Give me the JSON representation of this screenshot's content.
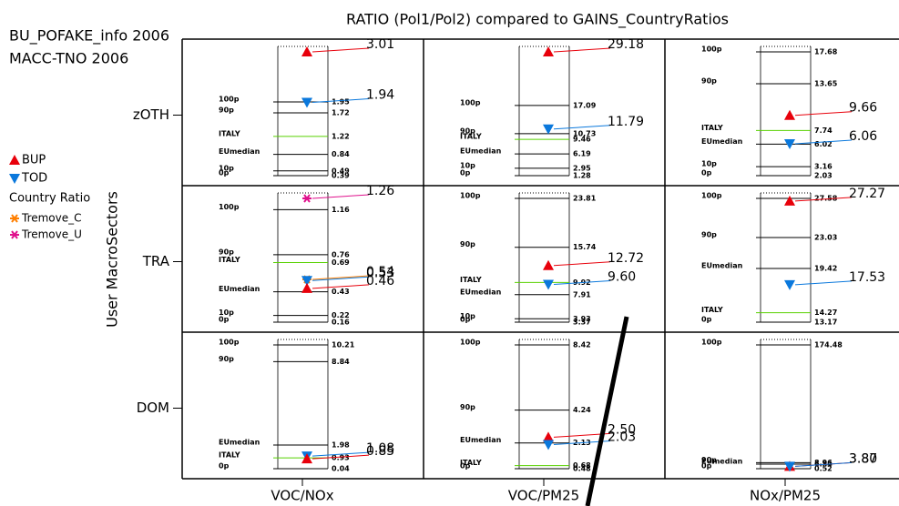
{
  "chart_data": {
    "type": "ratio-panels",
    "title": "RATIO (Pol1/Pol2) compared to GAINS_CountryRatios",
    "notes": [
      "BU_POFAKE_info 2006",
      "MACC-TNO 2006"
    ],
    "y_label": "User MacroSectors",
    "series": [
      {
        "name": "BUP",
        "color": "#e8000b"
      },
      {
        "name": "TOD",
        "color": "#0a78dc"
      },
      {
        "name": "Country Ratio",
        "color": "#58d100"
      },
      {
        "name": "Tremove_C",
        "color": "#ff7f00"
      },
      {
        "name": "Tremove_U",
        "color": "#e0108c"
      }
    ],
    "rows": [
      "zOTH",
      "TRA",
      "DOM"
    ],
    "cols": [
      "VOC/NOx",
      "VOC/PM25",
      "NOx/PM25"
    ],
    "panels": [
      [
        {
          "levels": [
            {
              "name": "100p",
              "value": 1.95
            },
            {
              "name": "90p",
              "value": 1.72
            },
            {
              "name": "ITALY",
              "value": 1.22,
              "series": 2
            },
            {
              "name": "EUmedian",
              "value": 0.84
            },
            {
              "name": "10p",
              "value": 0.49
            },
            {
              "name": "0p",
              "value": 0.39
            }
          ],
          "markers": [
            {
              "series": 0,
              "value": 3.01
            },
            {
              "series": 1,
              "value": 1.94
            }
          ]
        },
        {
          "levels": [
            {
              "name": "100p",
              "value": 17.09
            },
            {
              "name": "90p",
              "value": 10.73
            },
            {
              "name": "ITALY",
              "value": 9.46,
              "series": 2
            },
            {
              "name": "EUmedian",
              "value": 6.19
            },
            {
              "name": "10p",
              "value": 2.95
            },
            {
              "name": "0p",
              "value": 1.28
            }
          ],
          "markers": [
            {
              "series": 0,
              "value": 29.18
            },
            {
              "series": 1,
              "value": 11.79
            }
          ]
        },
        {
          "levels": [
            {
              "name": "100p",
              "value": 17.68
            },
            {
              "name": "90p",
              "value": 13.65
            },
            {
              "name": "ITALY",
              "value": 7.74,
              "series": 2
            },
            {
              "name": "EUmedian",
              "value": 6.02
            },
            {
              "name": "10p",
              "value": 3.16
            },
            {
              "name": "0p",
              "value": 2.03
            }
          ],
          "markers": [
            {
              "series": 0,
              "value": 9.66
            },
            {
              "series": 1,
              "value": 6.06
            }
          ]
        }
      ],
      [
        {
          "levels": [
            {
              "name": "100p",
              "value": 1.16
            },
            {
              "name": "90p",
              "value": 0.76
            },
            {
              "name": "ITALY",
              "value": 0.69,
              "series": 2
            },
            {
              "name": "EUmedian",
              "value": 0.43
            },
            {
              "name": "10p",
              "value": 0.22
            },
            {
              "name": "0p",
              "value": 0.16
            }
          ],
          "markers": [
            {
              "series": 4,
              "value": 1.26
            },
            {
              "series": 3,
              "value": 0.54
            },
            {
              "series": 1,
              "value": 0.53
            },
            {
              "series": 0,
              "value": 0.46
            }
          ]
        },
        {
          "levels": [
            {
              "name": "100p",
              "value": 23.81
            },
            {
              "name": "90p",
              "value": 15.74
            },
            {
              "name": "ITALY",
              "value": 9.92,
              "series": 2
            },
            {
              "name": "EUmedian",
              "value": 7.91
            },
            {
              "name": "10p",
              "value": 3.93
            },
            {
              "name": "0p",
              "value": 3.37
            }
          ],
          "markers": [
            {
              "series": 0,
              "value": 12.72
            },
            {
              "series": 1,
              "value": 9.6,
              "value_label": "9.60"
            }
          ]
        },
        {
          "levels": [
            {
              "name": "100p",
              "value": 27.58
            },
            {
              "name": "90p",
              "value": 23.03
            },
            {
              "name": "EUmedian",
              "value": 19.42
            },
            {
              "name": "ITALY",
              "value": 14.27,
              "series": 2
            },
            {
              "name": "0p",
              "value": 13.17
            }
          ],
          "markers": [
            {
              "series": 0,
              "value": 27.27
            },
            {
              "series": 1,
              "value": 17.53
            }
          ]
        }
      ],
      [
        {
          "levels": [
            {
              "name": "100p",
              "value": 10.21
            },
            {
              "name": "90p",
              "value": 8.84
            },
            {
              "name": "EUmedian",
              "value": 1.98
            },
            {
              "name": "ITALY",
              "value": 0.93,
              "series": 2
            },
            {
              "name": "0p",
              "value": 0.04
            }
          ],
          "markers": [
            {
              "series": 1,
              "value": 1.08
            },
            {
              "series": 0,
              "value": 0.85
            }
          ]
        },
        {
          "levels": [
            {
              "name": "100p",
              "value": 8.42
            },
            {
              "name": "90p",
              "value": 4.24
            },
            {
              "name": "EUmedian",
              "value": 2.13
            },
            {
              "name": "ITALY",
              "value": 0.68,
              "series": 2
            },
            {
              "name": "0p",
              "value": 0.48
            }
          ],
          "markers": [
            {
              "series": 0,
              "value": 2.5,
              "value_label": "2.50"
            },
            {
              "series": 1,
              "value": 2.03
            }
          ]
        },
        {
          "levels": [
            {
              "name": "100p",
              "value": 174.48
            },
            {
              "name": "90p",
              "value": 8.96
            },
            {
              "name": "EUmedian",
              "value": 6.84
            },
            {
              "name": "0p",
              "value": 0.52
            }
          ],
          "markers": [
            {
              "series": 0,
              "value": 3.87
            },
            {
              "series": 1,
              "value": 3.8,
              "value_label": "3.80"
            }
          ]
        }
      ]
    ]
  }
}
